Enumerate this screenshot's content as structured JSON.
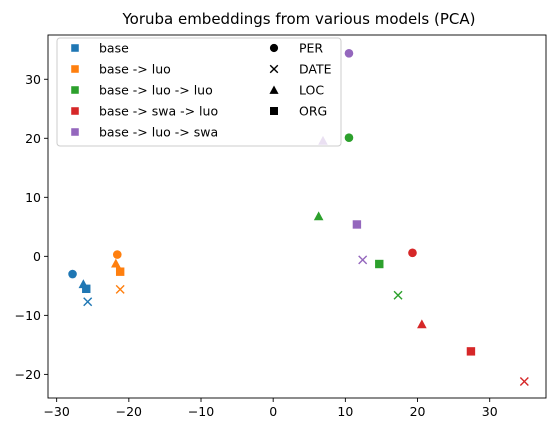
{
  "chart_data": {
    "type": "scatter",
    "title": "Yoruba embeddings from various models (PCA)",
    "xlabel": "",
    "ylabel": "",
    "xlim": [
      -31.2,
      37.8
    ],
    "ylim": [
      -24.0,
      37.5
    ],
    "xticks": [
      -30,
      -20,
      -10,
      0,
      10,
      20,
      30
    ],
    "yticks": [
      -20,
      -10,
      0,
      10,
      20,
      30
    ],
    "grid": false,
    "legend_placement": "top-left",
    "series": [
      {
        "name": "base",
        "color": "#1f77b4",
        "points": [
          {
            "label": "PER",
            "x": -27.8,
            "y": -3.0
          },
          {
            "label": "DATE",
            "x": -25.7,
            "y": -7.7
          },
          {
            "label": "LOC",
            "x": -26.3,
            "y": -4.7
          },
          {
            "label": "ORG",
            "x": -25.9,
            "y": -5.5
          }
        ]
      },
      {
        "name": "base -> luo",
        "color": "#ff7f0e",
        "points": [
          {
            "label": "PER",
            "x": -21.6,
            "y": 0.3
          },
          {
            "label": "DATE",
            "x": -21.2,
            "y": -5.6
          },
          {
            "label": "LOC",
            "x": -21.8,
            "y": -1.2
          },
          {
            "label": "ORG",
            "x": -21.2,
            "y": -2.6
          }
        ]
      },
      {
        "name": "base -> luo -> luo",
        "color": "#2ca02c",
        "points": [
          {
            "label": "PER",
            "x": 10.5,
            "y": 20.1
          },
          {
            "label": "DATE",
            "x": 17.3,
            "y": -6.6
          },
          {
            "label": "LOC",
            "x": 6.3,
            "y": 6.8
          },
          {
            "label": "ORG",
            "x": 14.7,
            "y": -1.3
          }
        ]
      },
      {
        "name": "base -> swa -> luo",
        "color": "#d62728",
        "points": [
          {
            "label": "PER",
            "x": 19.3,
            "y": 0.6
          },
          {
            "label": "DATE",
            "x": 34.8,
            "y": -21.2
          },
          {
            "label": "LOC",
            "x": 20.6,
            "y": -11.5
          },
          {
            "label": "ORG",
            "x": 27.4,
            "y": -16.1
          }
        ]
      },
      {
        "name": "base -> luo -> swa",
        "color": "#9467bd",
        "points": [
          {
            "label": "PER",
            "x": 10.5,
            "y": 34.4
          },
          {
            "label": "DATE",
            "x": 12.4,
            "y": -0.6
          },
          {
            "label": "LOC",
            "x": 6.9,
            "y": 19.6
          },
          {
            "label": "ORG",
            "x": 11.6,
            "y": 5.4
          }
        ]
      }
    ],
    "marker_legend": [
      {
        "label": "PER",
        "marker": "circle"
      },
      {
        "label": "DATE",
        "marker": "x"
      },
      {
        "label": "LOC",
        "marker": "triangle"
      },
      {
        "label": "ORG",
        "marker": "square"
      }
    ]
  }
}
